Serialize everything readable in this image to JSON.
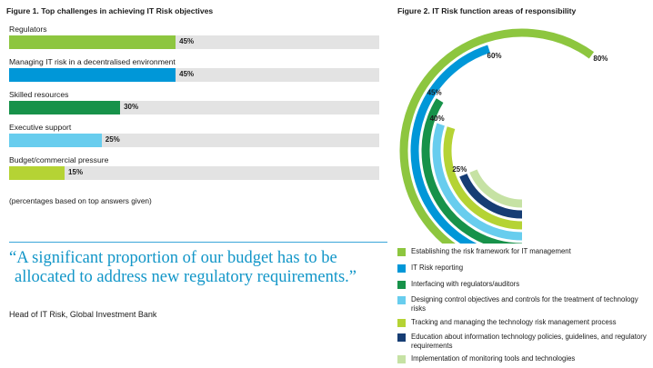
{
  "chart_data": [
    {
      "type": "bar",
      "title": "Figure 1. Top challenges in achieving IT Risk objectives",
      "categories": [
        "Regulators",
        "Managing IT risk in a decentralised environment",
        "Skilled resources",
        "Executive support",
        "Budget/commercial pressure"
      ],
      "values": [
        45,
        45,
        30,
        25,
        15
      ],
      "value_labels": [
        "45%",
        "45%",
        "30%",
        "25%",
        "15%"
      ],
      "colors": [
        "#8dc63f",
        "#0097d8",
        "#17924a",
        "#68cdee",
        "#b5d334"
      ],
      "xlim": [
        0,
        100
      ],
      "note": "(percentages based on top answers given)"
    },
    {
      "type": "radial_bar",
      "title": "Figure 2. IT Risk function areas of responsibility",
      "series": [
        {
          "name": "Establishing the risk framework for IT management",
          "value": 80,
          "color": "#8dc63f"
        },
        {
          "name": "IT Risk reporting",
          "value": 60,
          "color": "#0097d8"
        },
        {
          "name": "Interfacing with regulators/auditors",
          "value": 45,
          "color": "#17924a"
        },
        {
          "name": "Designing control objectives and controls for the treatment of technology risks",
          "value": 40,
          "color": "#68cdee"
        },
        {
          "name": "Tracking and managing the technology risk management process",
          "value": 40,
          "color": "#b5d334"
        },
        {
          "name": "Education about information technology policies, guidelines, and regulatory requirements",
          "value": 25,
          "color": "#163d74"
        },
        {
          "name": "Implementation of monitoring tools and technologies",
          "value": 25,
          "color": "#c6e2a4"
        }
      ],
      "value_labels": [
        "80%",
        "60%",
        "45%",
        "40%",
        "25%"
      ],
      "legend_position": "bottom"
    }
  ],
  "quote": {
    "line1": "“A significant proportion of our budget has to be",
    "line2": "allocated to address new regulatory requirements.”"
  },
  "attribution": "Head of IT Risk, Global Investment Bank"
}
